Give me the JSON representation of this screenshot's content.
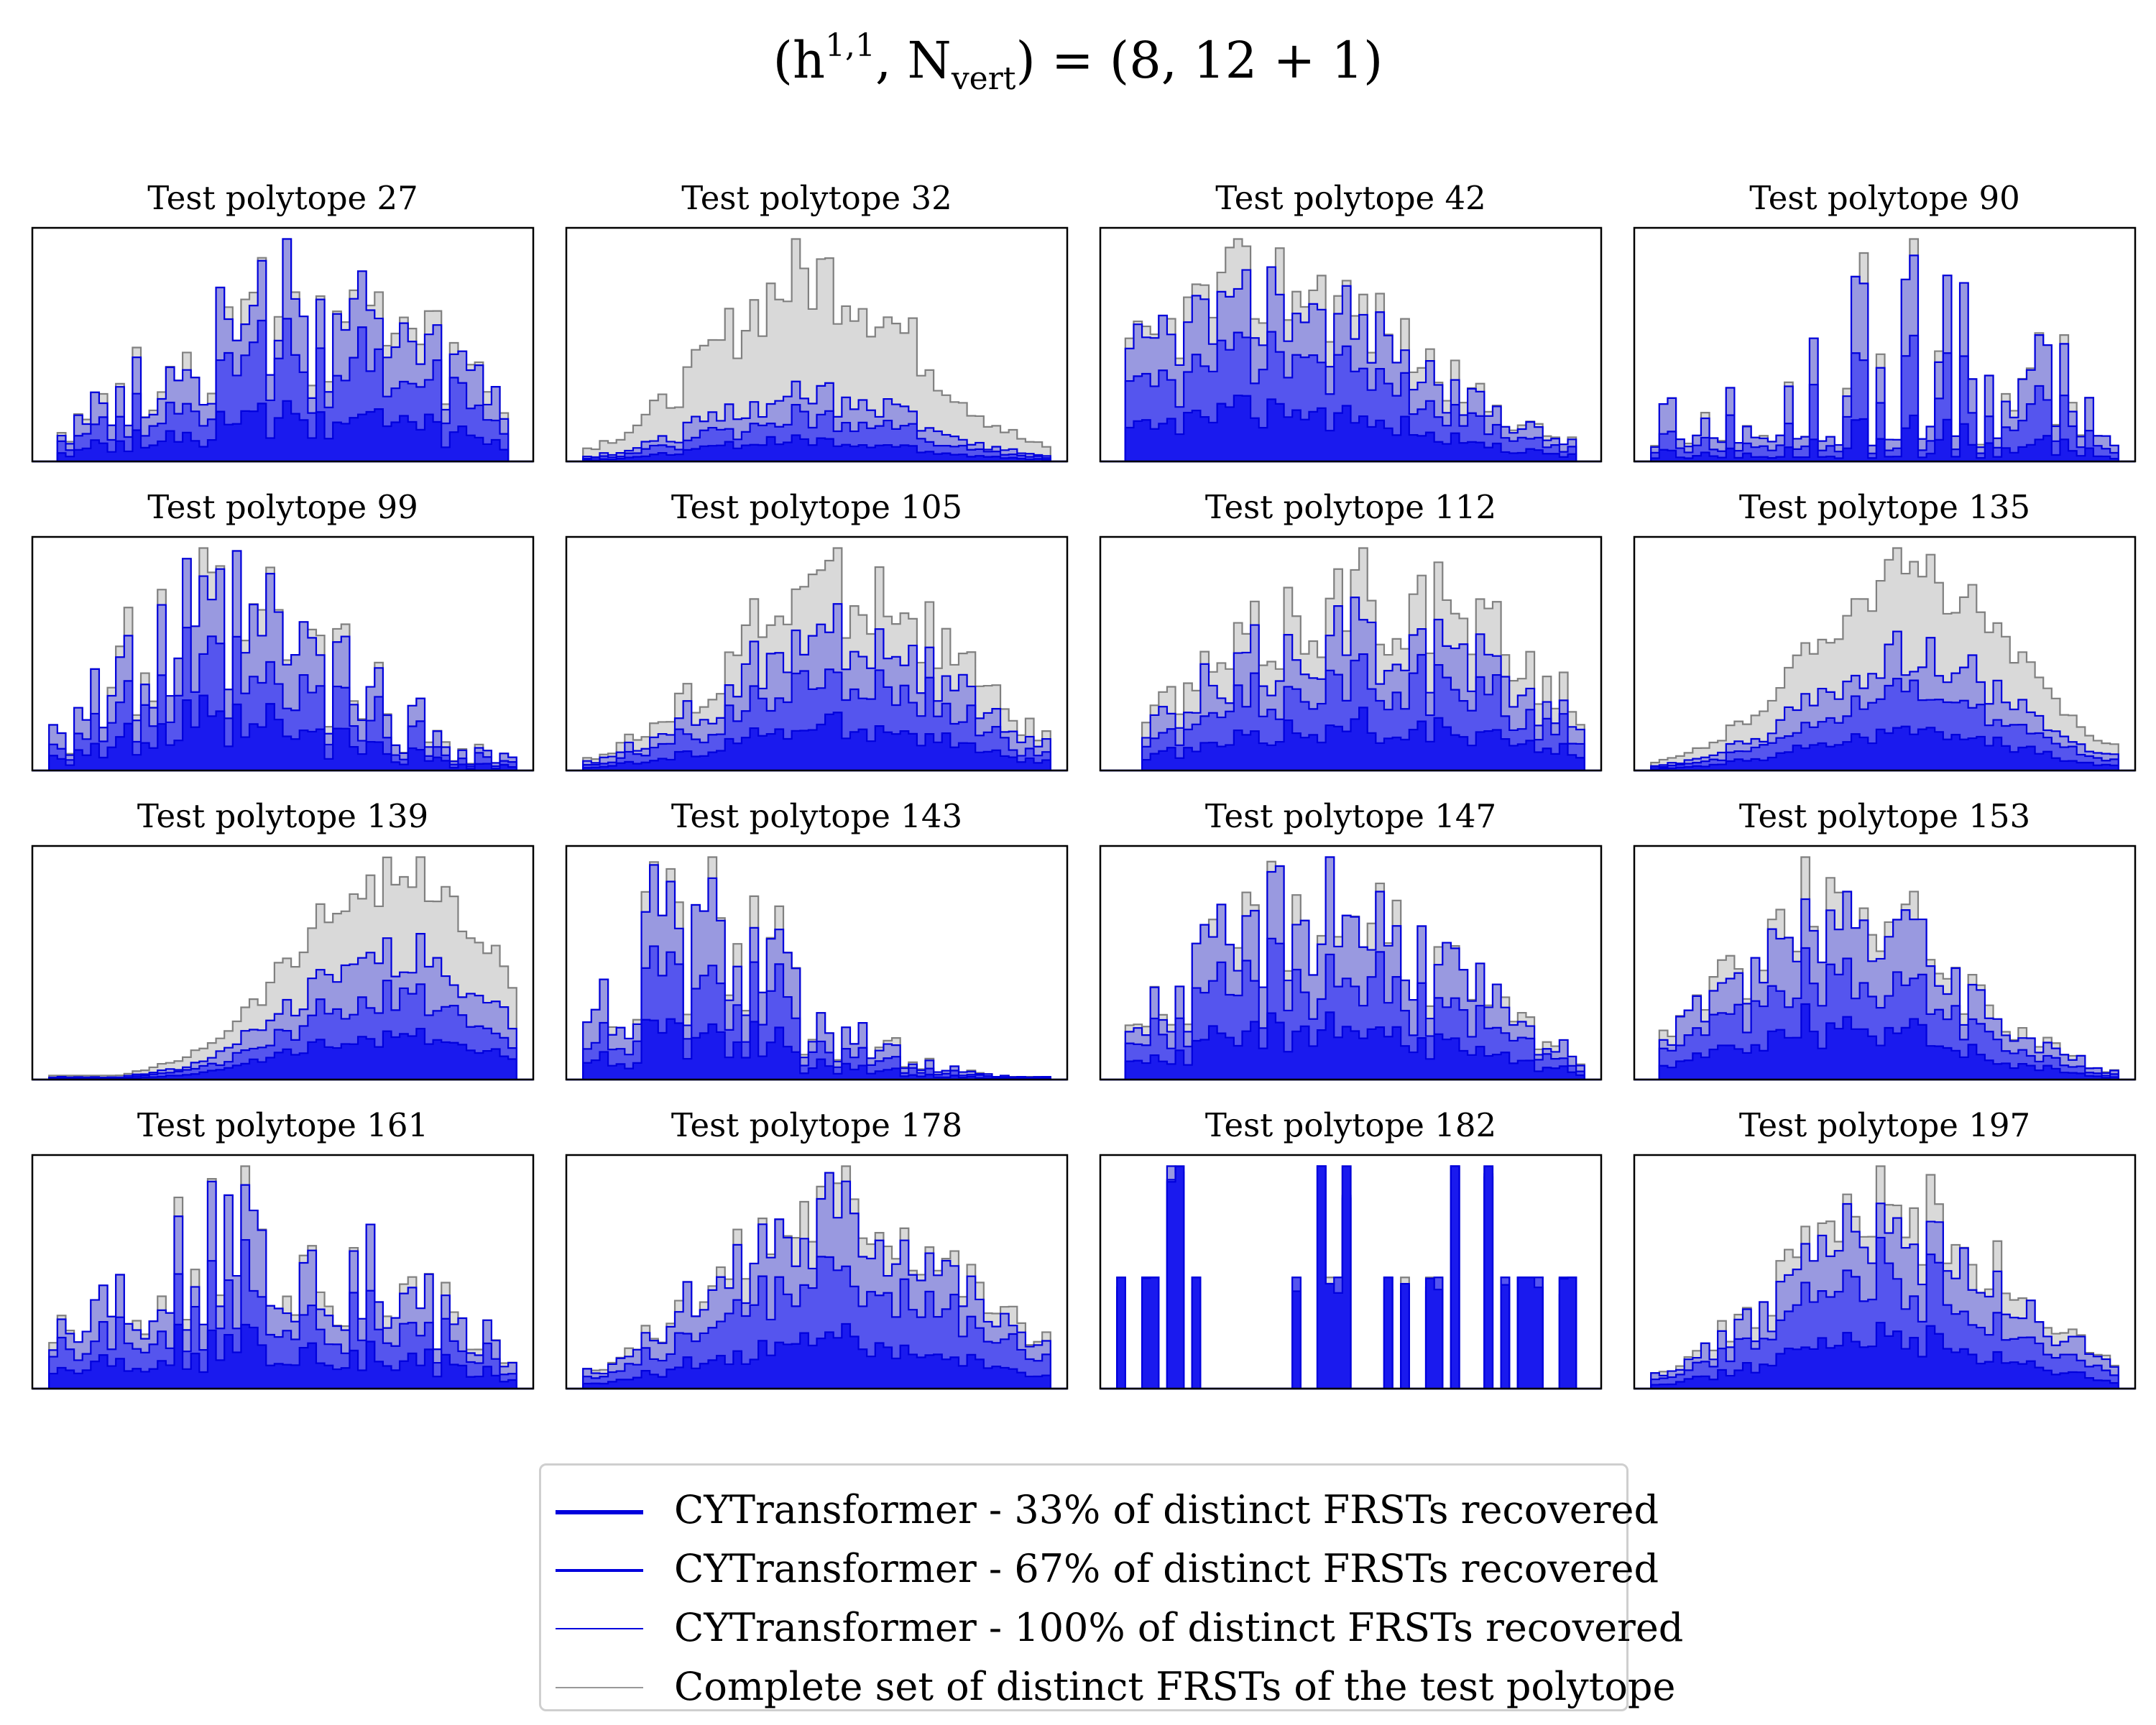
{
  "figure": {
    "title": {
      "prefix": "(h",
      "sup": "1,1",
      "mid": ", N",
      "sub": "vert",
      "suffix": ") = (8, 12 + 1)"
    }
  },
  "colors": {
    "complete_fill": "#d9d9d9",
    "complete_edge": "#808080",
    "c100_fill": "#9999e0",
    "c67_fill": "#5555ee",
    "c33_fill": "#1a1aee",
    "blue_edge": "#0000dd"
  },
  "legend": {
    "entries": [
      {
        "label": "CYTransformer - 33% of distinct FRSTs recovered",
        "color": "#0000dd",
        "stroke": 6
      },
      {
        "label": "CYTransformer - 67% of distinct FRSTs recovered",
        "color": "#0000dd",
        "stroke": 4
      },
      {
        "label": "CYTransformer - 100% of distinct FRSTs recovered",
        "color": "#0000dd",
        "stroke": 2
      },
      {
        "label": "Complete set of distinct FRSTs of the test polytope",
        "color": "#999999",
        "stroke": 2
      }
    ]
  },
  "chart_data": [
    {
      "type": "histogram",
      "title": "Test polytope 27",
      "bins": 60,
      "start": 0.05,
      "end": 0.95,
      "peak": 0.55,
      "width": 0.3,
      "spikiness": 0.55,
      "r100": 0.95,
      "r67": 0.62,
      "r33": 0.28,
      "seed": 27
    },
    {
      "type": "histogram",
      "title": "Test polytope 32",
      "bins": 60,
      "start": 0.04,
      "end": 0.97,
      "peak": 0.5,
      "width": 0.2,
      "spikiness": 0.25,
      "r100": 0.38,
      "r67": 0.25,
      "r33": 0.12,
      "seed": 32
    },
    {
      "type": "histogram",
      "title": "Test polytope 42",
      "bins": 60,
      "start": 0.05,
      "end": 0.95,
      "peak": 0.35,
      "width": 0.28,
      "spikiness": 0.3,
      "r100": 0.9,
      "r67": 0.6,
      "r33": 0.28,
      "seed": 42
    },
    {
      "type": "histogram",
      "title": "Test polytope 90",
      "bins": 60,
      "start": 0.04,
      "end": 0.97,
      "peak": 0.55,
      "width": 0.3,
      "spikiness": 0.85,
      "r100": 0.98,
      "r67": 0.55,
      "r33": 0.2,
      "sparse": true,
      "seed": 90
    },
    {
      "type": "histogram",
      "title": "Test polytope 99",
      "bins": 60,
      "start": 0.04,
      "end": 0.96,
      "peak": 0.4,
      "width": 0.25,
      "spikiness": 0.75,
      "r100": 0.96,
      "r67": 0.6,
      "r33": 0.3,
      "seed": 99
    },
    {
      "type": "histogram",
      "title": "Test polytope 105",
      "bins": 60,
      "start": 0.04,
      "end": 0.97,
      "peak": 0.55,
      "width": 0.22,
      "spikiness": 0.3,
      "r100": 0.72,
      "r67": 0.48,
      "r33": 0.24,
      "seed": 105
    },
    {
      "type": "histogram",
      "title": "Test polytope 112",
      "bins": 60,
      "start": 0.08,
      "end": 0.97,
      "peak": 0.55,
      "width": 0.3,
      "spikiness": 0.35,
      "r100": 0.78,
      "r67": 0.52,
      "r33": 0.25,
      "seed": 112
    },
    {
      "type": "histogram",
      "title": "Test polytope 135",
      "bins": 60,
      "start": 0.04,
      "end": 0.97,
      "peak": 0.55,
      "width": 0.2,
      "spikiness": 0.15,
      "r100": 0.55,
      "r67": 0.38,
      "r33": 0.2,
      "seed": 135
    },
    {
      "type": "histogram",
      "title": "Test polytope 139",
      "bins": 60,
      "start": 0.04,
      "end": 0.96,
      "peak": 0.72,
      "width": 0.2,
      "spikiness": 0.15,
      "r100": 0.6,
      "r67": 0.4,
      "r33": 0.22,
      "seed": 139
    },
    {
      "type": "histogram",
      "title": "Test polytope 143",
      "bins": 60,
      "start": 0.04,
      "end": 0.97,
      "peak": 0.25,
      "width": 0.22,
      "spikiness": 0.7,
      "r100": 0.96,
      "r67": 0.6,
      "r33": 0.28,
      "seed": 143
    },
    {
      "type": "histogram",
      "title": "Test polytope 147",
      "bins": 60,
      "start": 0.05,
      "end": 0.97,
      "peak": 0.45,
      "width": 0.25,
      "spikiness": 0.45,
      "r100": 0.96,
      "r67": 0.62,
      "r33": 0.3,
      "seed": 147
    },
    {
      "type": "histogram",
      "title": "Test polytope 153",
      "bins": 60,
      "start": 0.05,
      "end": 0.97,
      "peak": 0.42,
      "width": 0.22,
      "spikiness": 0.35,
      "r100": 0.94,
      "r67": 0.6,
      "r33": 0.3,
      "seed": 153
    },
    {
      "type": "histogram",
      "title": "Test polytope 161",
      "bins": 60,
      "start": 0.04,
      "end": 0.96,
      "peak": 0.45,
      "width": 0.3,
      "spikiness": 0.55,
      "r100": 0.96,
      "r67": 0.62,
      "r33": 0.3,
      "seed": 161
    },
    {
      "type": "histogram",
      "title": "Test polytope 178",
      "bins": 60,
      "start": 0.04,
      "end": 0.97,
      "peak": 0.55,
      "width": 0.24,
      "spikiness": 0.3,
      "r100": 0.9,
      "r67": 0.6,
      "r33": 0.26,
      "seed": 178
    },
    {
      "type": "histogram",
      "title": "Test polytope 182",
      "bins": 60,
      "start": 0.04,
      "end": 0.97,
      "peak": 0.5,
      "width": 0.3,
      "spikiness": 1.0,
      "r100": 0.99,
      "r67": 0.99,
      "r33": 0.99,
      "discrete": true,
      "seed": 182
    },
    {
      "type": "histogram",
      "title": "Test polytope 197",
      "bins": 60,
      "start": 0.04,
      "end": 0.97,
      "peak": 0.52,
      "width": 0.22,
      "spikiness": 0.3,
      "r100": 0.9,
      "r67": 0.6,
      "r33": 0.28,
      "seed": 197
    }
  ]
}
